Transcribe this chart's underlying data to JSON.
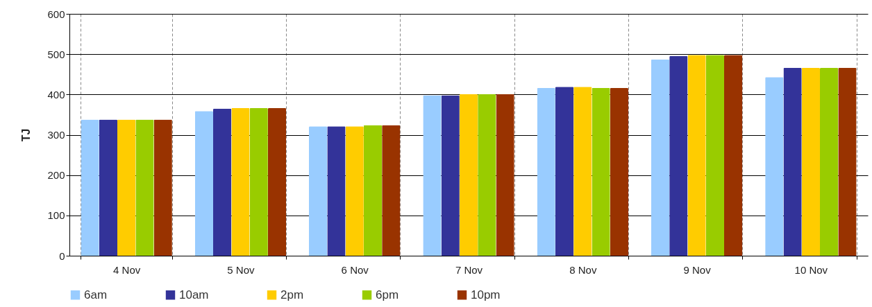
{
  "chart_data": {
    "type": "bar",
    "ylabel": "TJ",
    "categories": [
      "4 Nov",
      "5 Nov",
      "6 Nov",
      "7 Nov",
      "8 Nov",
      "9 Nov",
      "10 Nov"
    ],
    "series": [
      {
        "name": "6am",
        "color": "#99ccff",
        "values": [
          338,
          359,
          321,
          398,
          416,
          487,
          443
        ]
      },
      {
        "name": "10am",
        "color": "#333399",
        "values": [
          338,
          365,
          321,
          398,
          419,
          495,
          466
        ]
      },
      {
        "name": "2pm",
        "color": "#ffcc00",
        "values": [
          338,
          366,
          321,
          401,
          419,
          498,
          466
        ]
      },
      {
        "name": "6pm",
        "color": "#99cc00",
        "values": [
          338,
          366,
          324,
          401,
          416,
          498,
          466
        ]
      },
      {
        "name": "10pm",
        "color": "#993300",
        "values": [
          338,
          366,
          324,
          401,
          416,
          498,
          466
        ]
      }
    ],
    "ylim": [
      0,
      600
    ],
    "yticks": [
      0,
      100,
      200,
      300,
      400,
      500,
      600
    ],
    "grid": true,
    "legend": "bottom"
  }
}
